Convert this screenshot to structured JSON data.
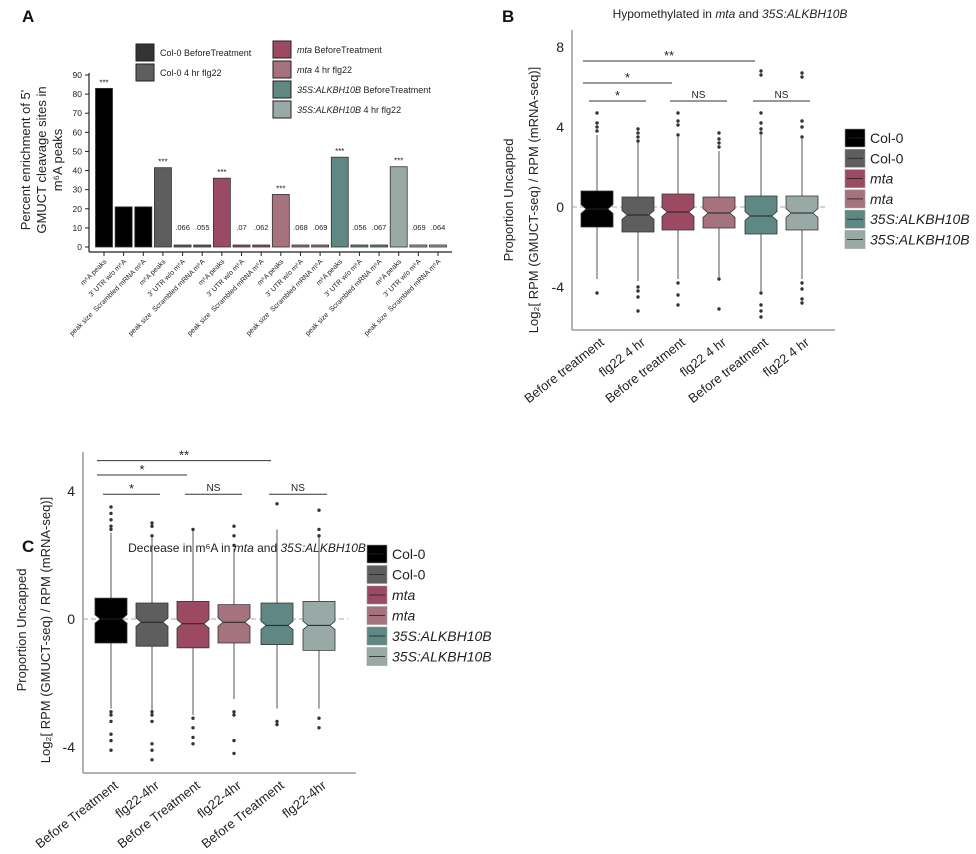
{
  "chart_data": [
    {
      "panel_label": "A",
      "type": "bar",
      "ylabel_lines": [
        "Percent enrichment  of 5'",
        "GMUCT cleavage sites in",
        "m⁶A peaks"
      ],
      "ylim": [
        0,
        90
      ],
      "yticks": [
        0,
        10,
        20,
        30,
        40,
        50,
        60,
        70,
        80,
        90
      ],
      "category_labels": [
        [
          "m⁶A peaks"
        ],
        [
          "3' UTR w/o m⁶A"
        ],
        [
          "Scrambled mRNA m⁶A",
          "peak size"
        ],
        [
          "m⁶A peaks"
        ],
        [
          "3' UTR w/o m⁶A"
        ],
        [
          "Scrambled mRNA m⁶A",
          "peak size"
        ],
        [
          "m⁶A peaks"
        ],
        [
          "3' UTR w/o m⁶A"
        ],
        [
          "Scrambled mRNA m⁶A",
          "peak size"
        ],
        [
          "m⁶A peaks"
        ],
        [
          "3' UTR w/o m⁶A"
        ],
        [
          "Scrambled mRNA m⁶A",
          "peak size"
        ],
        [
          "m⁶A peaks"
        ],
        [
          "3' UTR w/o m⁶A"
        ],
        [
          "Scrambled mRNA m⁶A",
          "peak size"
        ],
        [
          "m⁶A peaks"
        ],
        [
          "3' UTR w/o m⁶A"
        ],
        [
          "Scrambled mRNA m⁶A",
          "peak size"
        ]
      ],
      "values": [
        83,
        21,
        21,
        41.5,
        0.066,
        0.055,
        36,
        0.07,
        0.062,
        27.5,
        0.068,
        0.069,
        47,
        0.056,
        0.067,
        42,
        0.069,
        0.064
      ],
      "bar_group": [
        0,
        0,
        0,
        1,
        1,
        1,
        2,
        2,
        2,
        3,
        3,
        3,
        4,
        4,
        4,
        5,
        5,
        5
      ],
      "bar_annotations": [
        "***",
        "",
        "",
        "***",
        ".066",
        ".055",
        "***",
        ".07",
        ".062",
        "***",
        ".068",
        ".069",
        "***",
        ".056",
        ".067",
        "***",
        ".069",
        ".064"
      ],
      "legend": [
        {
          "italic": "",
          "rest": "Col-0 BeforeTreatment",
          "color": "#333333"
        },
        {
          "italic": "",
          "rest": "Col-0 4 hr flg22",
          "color": "#5e5e5e"
        },
        {
          "italic": "mta",
          "rest": " BeforeTreatment",
          "color": "#9c4a63"
        },
        {
          "italic": "mta",
          "rest": " 4 hr flg22",
          "color": "#a6727e"
        },
        {
          "italic": "35S:ALKBH10B",
          "rest": " BeforeTreatment",
          "color": "#5f8783"
        },
        {
          "italic": "35S:ALKBH10B",
          "rest": " 4 hr flg22",
          "color": "#99aaa6"
        }
      ],
      "group_colors": [
        "#000000",
        "#5e5e5e",
        "#9c4a63",
        "#a6727e",
        "#5f8783",
        "#99aaa6"
      ]
    },
    {
      "panel_label": "B",
      "type": "boxplot",
      "title_parts": [
        {
          "t": "Hypomethylated in ",
          "i": false
        },
        {
          "t": "mta",
          "i": true
        },
        {
          "t": " and ",
          "i": false
        },
        {
          "t": "35S:ALKBH10B",
          "i": true
        }
      ],
      "ylabel_lines": [
        "Proportion Uncapped",
        "Log₂[ RPM (GMUCT-seq) / RPM (mRNA-seq)]"
      ],
      "ylim": [
        -6,
        9
      ],
      "yticks": [
        -4,
        0,
        4,
        8
      ],
      "categories": [
        "Before treatment",
        "flg22 4 hr",
        "Before treatment",
        "flg22 4 hr",
        "Before treatment",
        "flg22 4 hr"
      ],
      "boxes": [
        {
          "q1": -1.0,
          "median": -0.1,
          "q3": 0.8,
          "low": -3.6,
          "high": 3.6,
          "outliers": [
            4.7,
            4.2,
            4.0,
            3.8,
            -4.3
          ]
        },
        {
          "q1": -1.25,
          "median": -0.4,
          "q3": 0.5,
          "low": -3.7,
          "high": 3.3,
          "outliers": [
            3.9,
            3.7,
            3.5,
            3.3,
            -4.0,
            -4.2,
            -4.5,
            -5.2
          ]
        },
        {
          "q1": -1.15,
          "median": -0.25,
          "q3": 0.65,
          "low": -3.6,
          "high": 3.5,
          "outliers": [
            4.7,
            4.3,
            4.1,
            3.6,
            -3.8,
            -4.4,
            -4.9
          ]
        },
        {
          "q1": -1.05,
          "median": -0.3,
          "q3": 0.5,
          "low": -3.5,
          "high": 2.8,
          "outliers": [
            3.7,
            3.4,
            3.2,
            3.0,
            -3.6,
            -5.1
          ]
        },
        {
          "q1": -1.35,
          "median": -0.45,
          "q3": 0.55,
          "low": -4.2,
          "high": 3.6,
          "outliers": [
            6.8,
            6.6,
            4.7,
            4.2,
            3.9,
            3.7,
            -4.3,
            -4.9,
            -5.2,
            -5.5
          ]
        },
        {
          "q1": -1.15,
          "median": -0.3,
          "q3": 0.55,
          "low": -3.6,
          "high": 3.4,
          "outliers": [
            6.7,
            6.5,
            4.3,
            4.0,
            3.5,
            -3.8,
            -4.1,
            -4.6,
            -4.8
          ]
        }
      ],
      "significance": [
        {
          "from": 0,
          "to": 4,
          "y": 7.3,
          "label": "**"
        },
        {
          "from": 0,
          "to": 2,
          "y": 6.2,
          "label": "*"
        },
        {
          "from": 0,
          "to": 1,
          "y": 5.3,
          "label": "*"
        },
        {
          "from": 2,
          "to": 3,
          "y": 5.3,
          "label": "NS"
        },
        {
          "from": 4,
          "to": 5,
          "y": 5.3,
          "label": "NS"
        }
      ],
      "legend": [
        {
          "label": "Col-0",
          "italic": false
        },
        {
          "label": "Col-0",
          "italic": false
        },
        {
          "label": "mta",
          "italic": true
        },
        {
          "label": "mta",
          "italic": true
        },
        {
          "label": "35S:ALKBH10B",
          "italic": true
        },
        {
          "label": "35S:ALKBH10B",
          "italic": true
        }
      ],
      "colors": [
        "#000000",
        "#5e5e5e",
        "#9c4a63",
        "#a6727e",
        "#5f8783",
        "#99aaa6"
      ]
    },
    {
      "panel_label": "C",
      "type": "boxplot",
      "title_parts": [
        {
          "t": "Decrease in m⁶A in ",
          "i": false
        },
        {
          "t": "mta",
          "i": true
        },
        {
          "t": " and ",
          "i": false
        },
        {
          "t": "35S:ALKBH10B",
          "i": true
        }
      ],
      "ylabel_lines": [
        "Proportion Uncapped",
        "Log₂[ RPM (GMUCT-seq) / RPM (mRNA-seq)]"
      ],
      "ylim": [
        -4.8,
        5.3
      ],
      "yticks": [
        -4,
        0,
        4
      ],
      "categories": [
        "Before Treatment",
        "flg22-4hr",
        "Before Treatment",
        "flg22-4hr",
        "Before Treatment",
        "flg22-4hr"
      ],
      "boxes": [
        {
          "q1": -0.75,
          "median": 0.0,
          "q3": 0.65,
          "low": -2.8,
          "high": 2.7,
          "outliers": [
            3.5,
            3.3,
            3.1,
            2.9,
            2.8,
            -2.9,
            -3.0,
            -3.2,
            -3.6,
            -3.8,
            -4.1
          ]
        },
        {
          "q1": -0.85,
          "median": -0.1,
          "q3": 0.5,
          "low": -2.9,
          "high": 2.6,
          "outliers": [
            3.0,
            2.9,
            2.6,
            -2.9,
            -3.0,
            -3.2,
            -3.9,
            -4.1,
            -4.4
          ]
        },
        {
          "q1": -0.9,
          "median": -0.15,
          "q3": 0.55,
          "low": -3.0,
          "high": 2.8,
          "outliers": [
            2.8,
            -3.1,
            -3.4,
            -3.7,
            -3.9
          ]
        },
        {
          "q1": -0.75,
          "median": -0.1,
          "q3": 0.45,
          "low": -2.5,
          "high": 2.2,
          "outliers": [
            2.9,
            2.6,
            2.3,
            -2.9,
            -3.0,
            -3.8,
            -4.2
          ]
        },
        {
          "q1": -0.8,
          "median": -0.2,
          "q3": 0.5,
          "low": -2.8,
          "high": 2.8,
          "outliers": [
            3.6,
            -3.2,
            -3.3
          ]
        },
        {
          "q1": -0.98,
          "median": -0.2,
          "q3": 0.55,
          "low": -2.8,
          "high": 2.6,
          "outliers": [
            3.4,
            2.8,
            2.6,
            -3.1,
            -3.4
          ]
        }
      ],
      "significance": [
        {
          "from": 0,
          "to": 4,
          "y": 4.95,
          "label": "**"
        },
        {
          "from": 0,
          "to": 2,
          "y": 4.5,
          "label": "*"
        },
        {
          "from": 0,
          "to": 1,
          "y": 3.9,
          "label": "*"
        },
        {
          "from": 2,
          "to": 3,
          "y": 3.9,
          "label": "NS"
        },
        {
          "from": 4,
          "to": 5,
          "y": 3.9,
          "label": "NS"
        }
      ],
      "legend": [
        {
          "label": "Col-0",
          "italic": false
        },
        {
          "label": "Col-0",
          "italic": false
        },
        {
          "label": "mta",
          "italic": true
        },
        {
          "label": "mta",
          "italic": true
        },
        {
          "label": "35S:ALKBH10B",
          "italic": true
        },
        {
          "label": "35S:ALKBH10B",
          "italic": true
        }
      ],
      "colors": [
        "#000000",
        "#5e5e5e",
        "#9c4a63",
        "#a6727e",
        "#5f8783",
        "#99aaa6"
      ]
    }
  ]
}
